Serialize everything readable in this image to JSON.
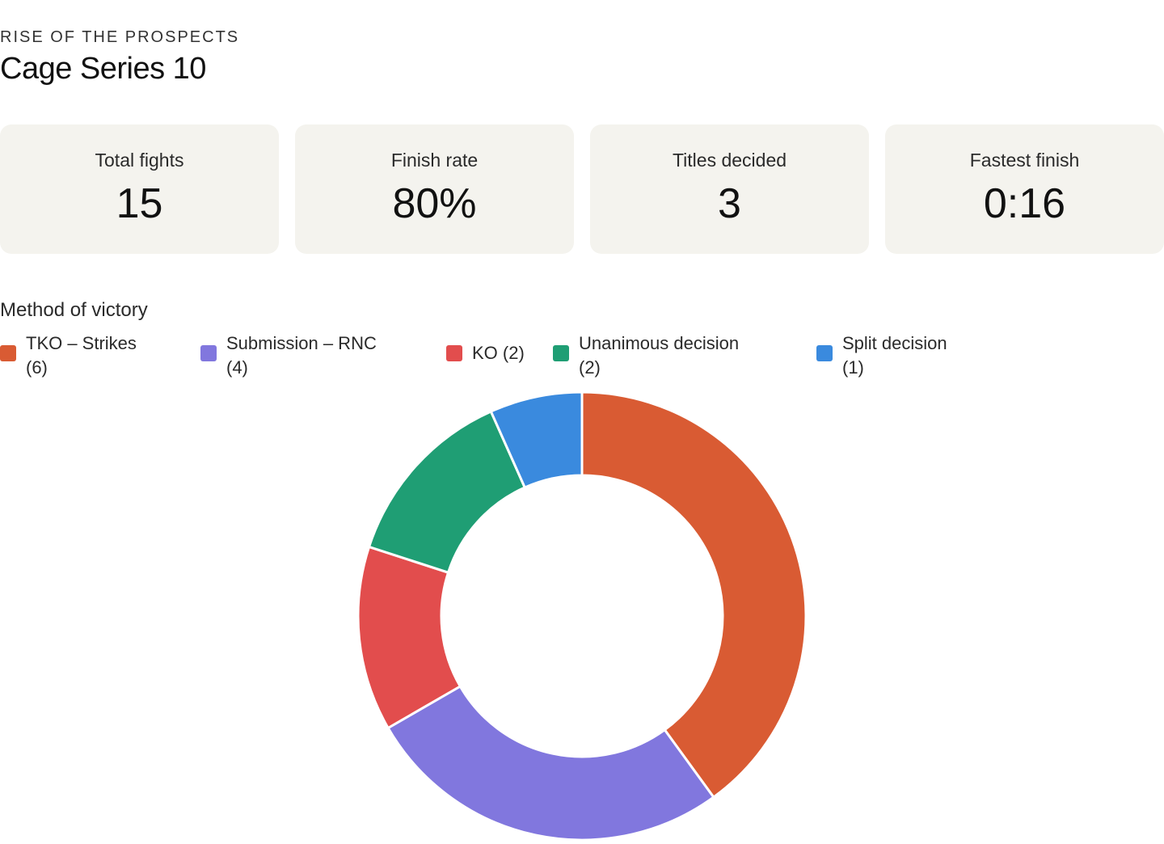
{
  "header": {
    "eyebrow": "RISE OF THE PROSPECTS",
    "title": "Cage Series 10"
  },
  "stats": [
    {
      "label": "Total fights",
      "value": "15"
    },
    {
      "label": "Finish rate",
      "value": "80%"
    },
    {
      "label": "Titles decided",
      "value": "3"
    },
    {
      "label": "Fastest finish",
      "value": "0:16"
    }
  ],
  "legend": [
    {
      "line1": "TKO – Strikes",
      "line2": "(6)"
    },
    {
      "line1": "Submission – RNC",
      "line2": "(4)"
    },
    {
      "line1": "KO (2)",
      "line2": ""
    },
    {
      "line1": "Unanimous decision",
      "line2": "(2)"
    },
    {
      "line1": "Split decision",
      "line2": "(1)"
    }
  ],
  "chart_data": {
    "type": "pie",
    "title": "Method of victory",
    "categories": [
      "TKO – Strikes",
      "Submission – RNC",
      "KO",
      "Unanimous decision",
      "Split decision"
    ],
    "values": [
      6,
      4,
      2,
      2,
      1
    ],
    "colors": [
      "#d95b33",
      "#8177de",
      "#e24d4d",
      "#1f9e74",
      "#3a8ade"
    ],
    "donut": true,
    "legend_position": "top"
  }
}
